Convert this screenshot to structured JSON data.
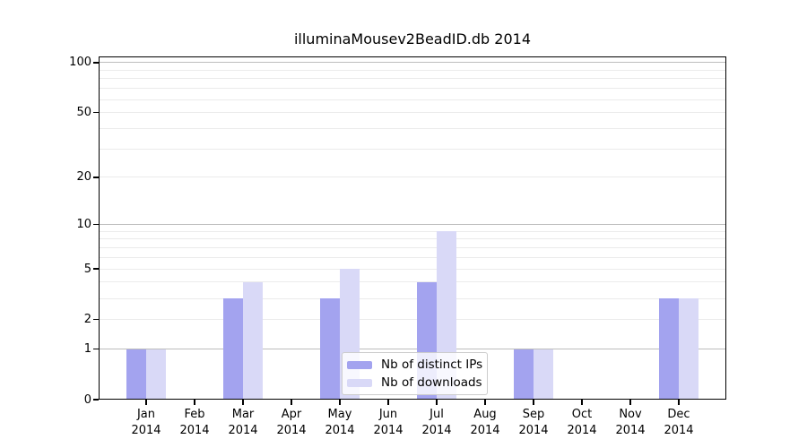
{
  "chart_data": {
    "type": "bar",
    "title": "illuminaMousev2BeadID.db 2014",
    "categories": [
      "Jan 2014",
      "Feb 2014",
      "Mar 2014",
      "Apr 2014",
      "May 2014",
      "Jun 2014",
      "Jul 2014",
      "Aug 2014",
      "Sep 2014",
      "Oct 2014",
      "Nov 2014",
      "Dec 2014"
    ],
    "series": [
      {
        "name": "Nb of distinct IPs",
        "color": "#a3a3ef",
        "values": [
          1,
          0,
          3,
          0,
          3,
          0,
          4,
          0,
          1,
          0,
          0,
          3
        ]
      },
      {
        "name": "Nb of downloads",
        "color": "#d9d9f7",
        "values": [
          1,
          0,
          4,
          0,
          5,
          0,
          9,
          0,
          1,
          0,
          0,
          3
        ]
      }
    ],
    "xlabel": "",
    "ylabel": "",
    "yscale": "log1p",
    "ylim": [
      0,
      109
    ],
    "yticks": [
      0,
      1,
      2,
      5,
      10,
      20,
      50,
      100
    ],
    "grid": true,
    "gridlines_major": [
      1,
      10,
      100
    ],
    "gridlines_minor": [
      2,
      3,
      4,
      5,
      6,
      7,
      8,
      9,
      20,
      30,
      40,
      50,
      60,
      70,
      80,
      90
    ],
    "legend_position": "lower center"
  },
  "colors": {
    "grid_major": "#bdbdbd",
    "grid_minor": "#ebebeb",
    "axis": "#000000",
    "legend_border": "#cccccc",
    "text": "#000000"
  }
}
